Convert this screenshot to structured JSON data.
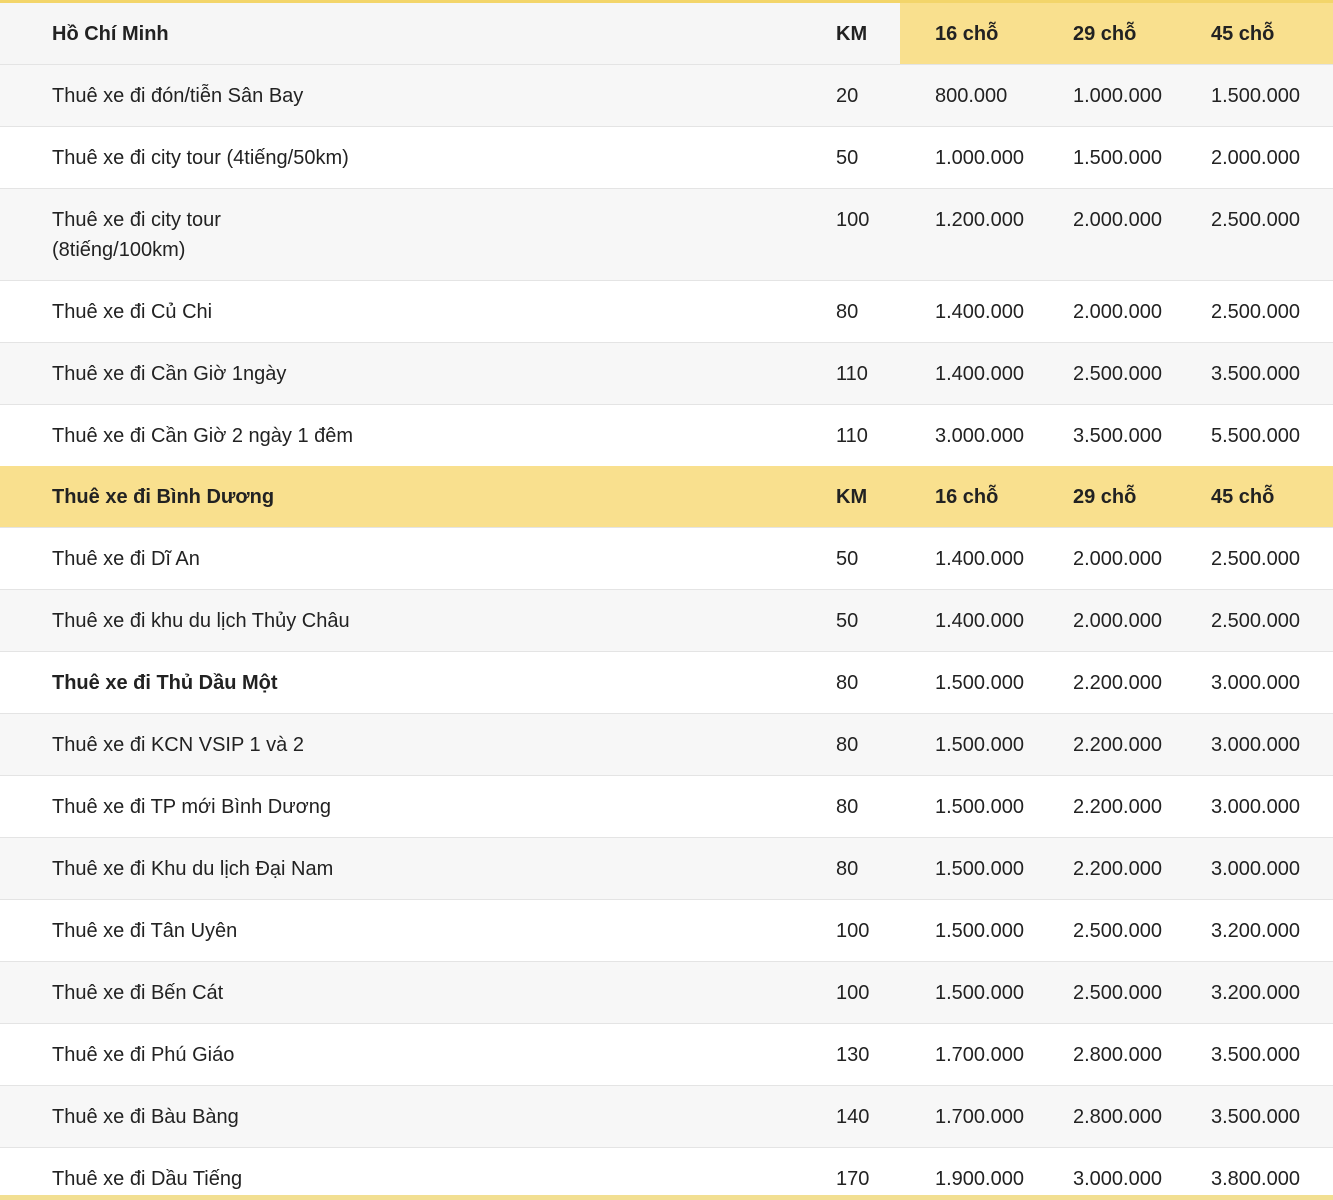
{
  "tables": [
    {
      "header": {
        "name": "Hồ Chí Minh",
        "km": "KM",
        "p16": "16 chỗ",
        "p29": "29 chỗ",
        "p45": "45 chỗ"
      },
      "rows": [
        {
          "name": "Thuê xe đi đón/tiễn Sân Bay",
          "km": "20",
          "p16": "800.000",
          "p29": "1.000.000",
          "p45": "1.500.000"
        },
        {
          "name": "Thuê xe đi city tour (4tiếng/50km)",
          "km": "50",
          "p16": "1.000.000",
          "p29": "1.500.000",
          "p45": "2.000.000"
        },
        {
          "name_line1": "Thuê xe đi city tour",
          "name_line2": "(8tiếng/100km)",
          "km": "100",
          "p16": "1.200.000",
          "p29": "2.000.000",
          "p45": "2.500.000"
        },
        {
          "name": "Thuê xe đi Củ Chi",
          "km": "80",
          "p16": "1.400.000",
          "p29": "2.000.000",
          "p45": "2.500.000"
        },
        {
          "name": "Thuê xe đi Cần Giờ 1ngày",
          "km": "110",
          "p16": "1.400.000",
          "p29": "2.500.000",
          "p45": "3.500.000"
        },
        {
          "name": "Thuê xe đi Cần Giờ 2 ngày 1 đêm",
          "km": "110",
          "p16": "3.000.000",
          "p29": "3.500.000",
          "p45": "5.500.000"
        }
      ]
    },
    {
      "header": {
        "name": "Thuê xe đi Bình Dương",
        "km": "KM",
        "p16": "16 chỗ",
        "p29": "29 chỗ",
        "p45": "45 chỗ"
      },
      "rows": [
        {
          "name": "Thuê xe đi Dĩ An",
          "km": "50",
          "p16": "1.400.000",
          "p29": "2.000.000",
          "p45": "2.500.000"
        },
        {
          "name": "Thuê xe đi khu du lịch Thủy Châu",
          "km": "50",
          "p16": "1.400.000",
          "p29": "2.000.000",
          "p45": "2.500.000"
        },
        {
          "name": "Thuê xe đi Thủ Dầu Một",
          "km": "80",
          "p16": "1.500.000",
          "p29": "2.200.000",
          "p45": "3.000.000"
        },
        {
          "name": "Thuê xe đi KCN VSIP 1 và 2",
          "km": "80",
          "p16": "1.500.000",
          "p29": "2.200.000",
          "p45": "3.000.000"
        },
        {
          "name": "Thuê xe đi TP mới Bình Dương",
          "km": "80",
          "p16": "1.500.000",
          "p29": "2.200.000",
          "p45": "3.000.000"
        },
        {
          "name": "Thuê xe đi Khu du lịch Đại Nam",
          "km": "80",
          "p16": "1.500.000",
          "p29": "2.200.000",
          "p45": "3.000.000"
        },
        {
          "name": "Thuê xe đi Tân Uyên",
          "km": "100",
          "p16": "1.500.000",
          "p29": "2.500.000",
          "p45": "3.200.000"
        },
        {
          "name": "Thuê xe đi Bến Cát",
          "km": "100",
          "p16": "1.500.000",
          "p29": "2.500.000",
          "p45": "3.200.000"
        },
        {
          "name": "Thuê xe đi Phú Giáo",
          "km": "130",
          "p16": "1.700.000",
          "p29": "2.800.000",
          "p45": "3.500.000"
        },
        {
          "name": "Thuê xe đi Bàu Bàng",
          "km": "140",
          "p16": "1.700.000",
          "p29": "2.800.000",
          "p45": "3.500.000"
        },
        {
          "name": "Thuê xe đi Dầu Tiếng",
          "km": "170",
          "p16": "1.900.000",
          "p29": "3.000.000",
          "p45": "3.800.000"
        }
      ]
    }
  ]
}
